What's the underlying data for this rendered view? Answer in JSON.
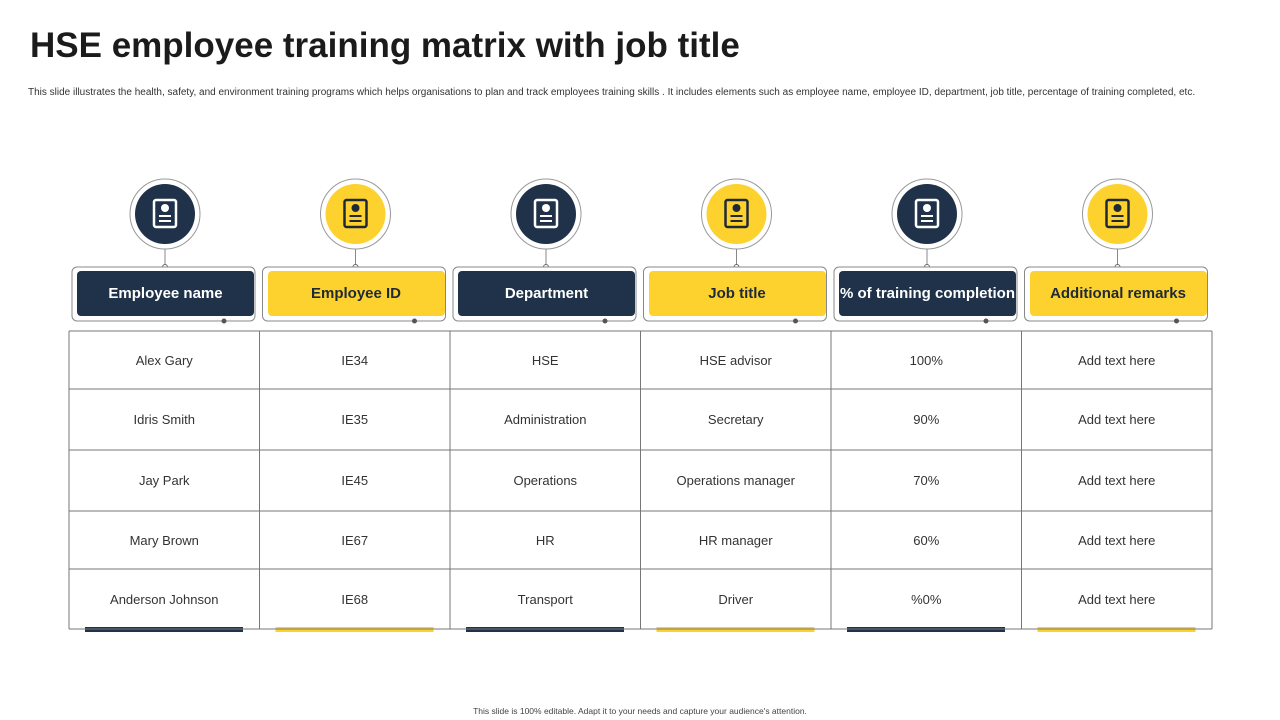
{
  "header": {
    "title": "HSE employee training matrix with job title",
    "description": "This slide illustrates the health, safety, and environment training programs which helps organisations to plan and track employees training skills . It includes elements such as employee name, employee ID, department, job title, percentage of training completed, etc."
  },
  "table": {
    "columns": [
      "Employee name",
      "Employee ID",
      "Department",
      "Job title",
      "% of training completion",
      "Additional remarks"
    ],
    "rows": [
      [
        "Alex Gary",
        "IE34",
        "HSE",
        "HSE advisor",
        "100%",
        "Add text here"
      ],
      [
        "Idris Smith",
        "IE35",
        "Administration",
        "Secretary",
        "90%",
        "Add text here"
      ],
      [
        "Jay Park",
        "IE45",
        "Operations",
        "Operations manager",
        "70%",
        "Add text here"
      ],
      [
        "Mary Brown",
        "IE67",
        "HR",
        "HR manager",
        "60%",
        "Add text here"
      ],
      [
        "Anderson Johnson",
        "IE68",
        "Transport",
        "Driver",
        "%0%",
        "Add text here"
      ]
    ]
  },
  "footer": "This slide is 100% editable. Adapt it to your needs and capture your audience's attention."
}
